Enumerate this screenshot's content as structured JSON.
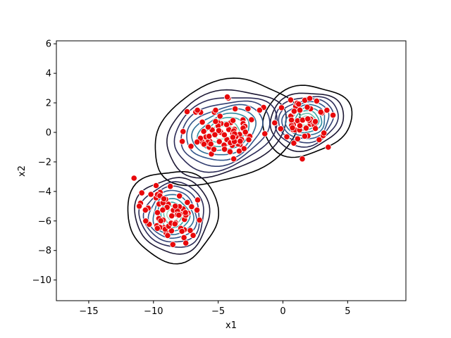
{
  "chart_data": {
    "type": "scatter",
    "title": "",
    "xlabel": "x1",
    "ylabel": "x2",
    "xlim": [
      -17.5,
      9.5
    ],
    "ylim": [
      -11.4,
      6.2
    ],
    "xticks": [
      -15,
      -10,
      -5,
      0,
      5
    ],
    "yticks": [
      -10,
      -8,
      -6,
      -4,
      -2,
      0,
      2,
      4,
      6
    ],
    "xtick_labels": [
      "−15",
      "−10",
      "−5",
      "0",
      "5"
    ],
    "ytick_labels": [
      "−10",
      "−8",
      "−6",
      "−4",
      "−2",
      "0",
      "2",
      "4",
      "6"
    ],
    "grid": false,
    "legend": "none",
    "overlay": "density contour lines (dark navy outer, teal inner)",
    "colors": {
      "points": "#e8080b",
      "point_edge": "#ffffff",
      "outer_contour": "#000000"
    },
    "clusters": [
      {
        "center": [
          -4.5,
          0.0
        ],
        "sd": [
          1.3,
          0.85
        ],
        "n": 75,
        "seed": 11
      },
      {
        "center": [
          1.8,
          0.8
        ],
        "sd": [
          0.9,
          0.6
        ],
        "n": 45,
        "seed": 23
      },
      {
        "center": [
          -8.5,
          -5.6
        ],
        "sd": [
          0.9,
          0.8
        ],
        "n": 55,
        "seed": 37
      }
    ],
    "points_outliers": [
      [
        -11.5,
        -3.1
      ],
      [
        -10.9,
        -4.1
      ],
      [
        -10.2,
        -4.2
      ],
      [
        -9.8,
        -3.6
      ],
      [
        -11.0,
        -4.8
      ],
      [
        -10.6,
        -6.0
      ],
      [
        -9.7,
        -6.5
      ],
      [
        -8.5,
        -7.6
      ],
      [
        -7.5,
        -7.5
      ],
      [
        -7.4,
        1.4
      ],
      [
        -6.6,
        1.5
      ],
      [
        -4.3,
        2.4
      ],
      [
        -2.7,
        1.6
      ],
      [
        -3.8,
        -1.8
      ],
      [
        -3.0,
        -1.1
      ],
      [
        -1.8,
        1.5
      ],
      [
        1.5,
        -1.8
      ],
      [
        3.5,
        -1.0
      ],
      [
        3.4,
        1.5
      ],
      [
        0.6,
        2.2
      ],
      [
        -5.2,
        1.5
      ],
      [
        -6.1,
        -0.8
      ],
      [
        -3.3,
        -0.6
      ],
      [
        2.8,
        -0.5
      ],
      [
        0.3,
        -0.3
      ],
      [
        -9.2,
        -4.5
      ],
      [
        -11.1,
        -5.0
      ],
      [
        -7.8,
        -6.7
      ]
    ],
    "contours": [
      {
        "level": 1,
        "color": "#000000",
        "scale": 3.1
      },
      {
        "level": 2,
        "color": "#1c1733",
        "scale": 2.55
      },
      {
        "level": 3,
        "color": "#2b2a57",
        "scale": 2.2
      },
      {
        "level": 4,
        "color": "#333f72",
        "scale": 1.9
      },
      {
        "level": 5,
        "color": "#33558a",
        "scale": 1.62
      },
      {
        "level": 6,
        "color": "#2f6d96",
        "scale": 1.36
      },
      {
        "level": 7,
        "color": "#2e8a9f",
        "scale": 1.1
      },
      {
        "level": 8,
        "color": "#3aa5a3",
        "scale": 0.86
      },
      {
        "level": 9,
        "color": "#6cc1ad",
        "scale": 0.62
      },
      {
        "level": 10,
        "color": "#a8d9c0",
        "scale": 0.4
      }
    ]
  }
}
